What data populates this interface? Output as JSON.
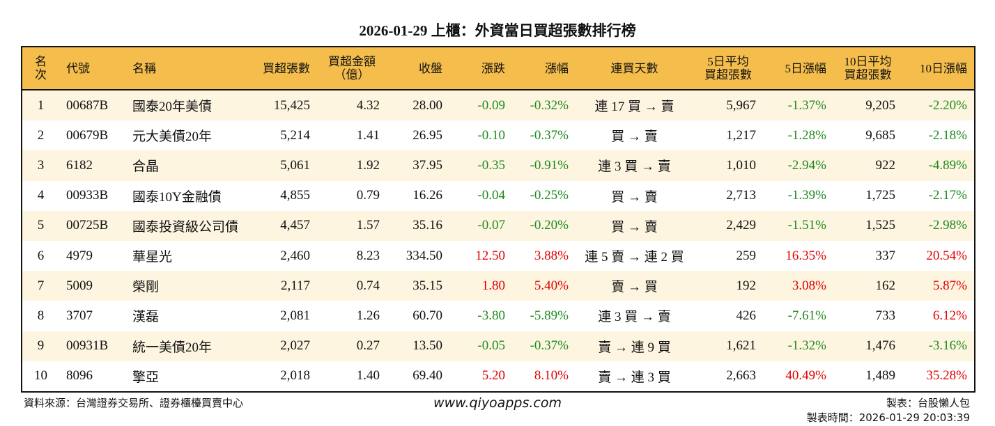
{
  "title": "2026-01-29 上櫃：外資當日買超張數排行榜",
  "headers": [
    "名次",
    "代號",
    "名稱",
    "買超張數",
    "買超金額\n（億）",
    "收盤",
    "漲跌",
    "漲幅",
    "連買天數",
    "5日平均\n買超張數",
    "5日漲幅",
    "10日平均\n買超張數",
    "10日漲幅"
  ],
  "colors": {
    "header_bg": "#F5BE4C",
    "row_alt": "#FDF5E0",
    "down": "#1e8a1e",
    "up": "#e00000"
  },
  "rows": [
    [
      "1",
      "00687B",
      "國泰20年美債",
      "15,425",
      "4.32",
      "28.00",
      "-0.09",
      "-0.32%",
      "連 17 買 → 賣",
      "5,967",
      "-1.37%",
      "9,205",
      "-2.20%"
    ],
    [
      "2",
      "00679B",
      "元大美債20年",
      "5,214",
      "1.41",
      "26.95",
      "-0.10",
      "-0.37%",
      "買 → 賣",
      "1,217",
      "-1.28%",
      "9,685",
      "-2.18%"
    ],
    [
      "3",
      "6182",
      "合晶",
      "5,061",
      "1.92",
      "37.95",
      "-0.35",
      "-0.91%",
      "連 3 買 → 賣",
      "1,010",
      "-2.94%",
      "922",
      "-4.89%"
    ],
    [
      "4",
      "00933B",
      "國泰10Y金融債",
      "4,855",
      "0.79",
      "16.26",
      "-0.04",
      "-0.25%",
      "買 → 賣",
      "2,713",
      "-1.39%",
      "1,725",
      "-2.17%"
    ],
    [
      "5",
      "00725B",
      "國泰投資級公司債",
      "4,457",
      "1.57",
      "35.16",
      "-0.07",
      "-0.20%",
      "買 → 賣",
      "2,429",
      "-1.51%",
      "1,525",
      "-2.98%"
    ],
    [
      "6",
      "4979",
      "華星光",
      "2,460",
      "8.23",
      "334.50",
      "12.50",
      "3.88%",
      "連 5 賣 → 連 2 買",
      "259",
      "16.35%",
      "337",
      "20.54%"
    ],
    [
      "7",
      "5009",
      "榮剛",
      "2,117",
      "0.74",
      "35.15",
      "1.80",
      "5.40%",
      "賣 → 買",
      "192",
      "3.08%",
      "162",
      "5.87%"
    ],
    [
      "8",
      "3707",
      "漢磊",
      "2,081",
      "1.26",
      "60.70",
      "-3.80",
      "-5.89%",
      "連 3 買 → 賣",
      "426",
      "-7.61%",
      "733",
      "6.12%"
    ],
    [
      "9",
      "00931B",
      "統一美債20年",
      "2,027",
      "0.27",
      "13.50",
      "-0.05",
      "-0.37%",
      "賣 → 連 9 買",
      "1,621",
      "-1.32%",
      "1,476",
      "-3.16%"
    ],
    [
      "10",
      "8096",
      "擎亞",
      "2,018",
      "1.40",
      "69.40",
      "5.20",
      "8.10%",
      "賣 → 連 3 買",
      "2,663",
      "40.49%",
      "1,489",
      "35.28%"
    ]
  ],
  "footer": {
    "source": "資料來源：台灣證券交易所、證券櫃檯買賣中心",
    "website": "www.qiyoapps.com",
    "author": "製表：台股懶人包",
    "time": "製表時間：2026-01-29 20:03:39"
  }
}
